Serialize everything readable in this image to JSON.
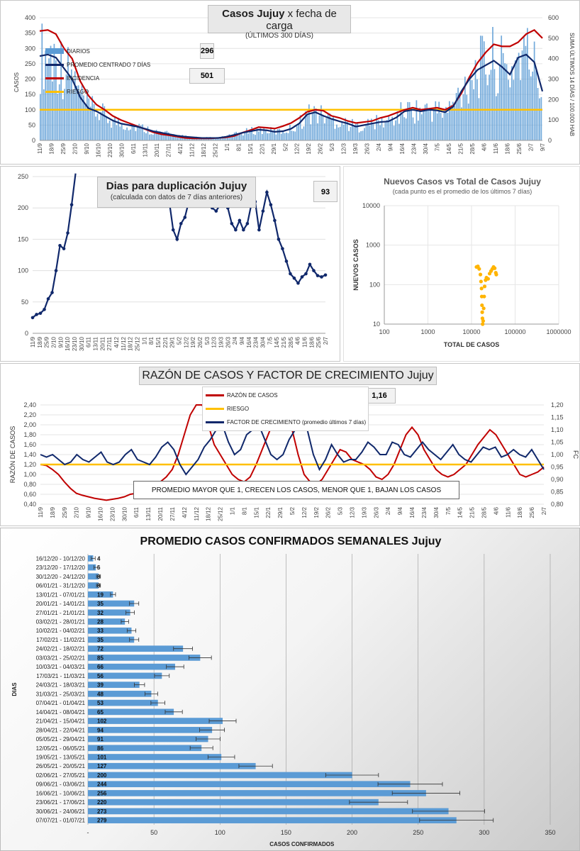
{
  "colors": {
    "navy": "#10286b",
    "red": "#c00000",
    "gold": "#ffc000",
    "bars": "#5b9bd5",
    "orange_pts": "#ffb400"
  },
  "panel1": {
    "title_bold": "Casos Jujuy",
    "title_rest": " x fecha de carga",
    "subtitle": "(ÚLTIMOS 300 DÍAS)",
    "ylabel_left": "CASOS",
    "ylabel_right": "SUMA  ÚLTIMOS 14 DÍAS / 100.000 HAB",
    "value_box_1": "296",
    "value_box_2": "501",
    "legend": [
      "DIARIOS",
      "PROMEDIO CENTRADO 7 DÍAS",
      "INCIDENCIA",
      "RIESGO"
    ]
  },
  "panel2": {
    "title": "Dias para duplicación Jujuy",
    "subtitle": "(calculada con datos de 7 días anteriores)",
    "value_box": "93"
  },
  "panel3": {
    "title": "Nuevos Casos vs Total de Casos Jujuy",
    "subtitle": "(cada punto es el promedio de los últimos 7 días)",
    "ylabel": "NUEVOS  CASOS",
    "xlabel": "TOTAL DE CASOS"
  },
  "panel4": {
    "title": "RAZÓN DE CASOS Y FACTOR DE CRECIMIENTO Jujuy",
    "ylabel_left": "RAZÓN DE CASOS",
    "ylabel_right": "FC",
    "value_box": "1,16",
    "note": "PROMEDIO MAYOR QUE 1, CRECEN LOS CASOS, MENOR QUE 1, BAJAN LOS CASOS",
    "legend": [
      "RAZÓN DE CASOS",
      "RIESGO",
      "FACTOR DE CRECIMIENTO (promedio últimos 7 días)"
    ]
  },
  "panel5": {
    "title": "PROMEDIO CASOS CONFIRMADOS SEMANALES Jujuy",
    "ylabel": "DIAS",
    "xlabel": "CASOS CONFIRMADOS"
  },
  "chart_data": [
    {
      "type": "bar",
      "title": "Casos Jujuy x fecha de carga",
      "x_ticks": [
        "11/9",
        "18/9",
        "25/9",
        "2/10",
        "9/10",
        "16/10",
        "23/10",
        "30/10",
        "6/11",
        "13/11",
        "20/11",
        "27/11",
        "4/12",
        "11/12",
        "18/12",
        "25/12",
        "1/1",
        "8/1",
        "15/1",
        "22/1",
        "29/1",
        "5/2",
        "12/2",
        "19/2",
        "26/2",
        "5/3",
        "12/3",
        "19/3",
        "26/3",
        "2/4",
        "9/4",
        "16/4",
        "23/4",
        "30/4",
        "7/5",
        "14/5",
        "21/5",
        "28/5",
        "4/6",
        "11/6",
        "18/6",
        "25/6",
        "2/7",
        "9/7"
      ],
      "y_ticks_left": [
        0,
        50,
        100,
        150,
        200,
        250,
        300,
        350,
        400
      ],
      "y_ticks_right": [
        0,
        100,
        200,
        300,
        400,
        500,
        600
      ],
      "ylim_left": [
        0,
        400
      ],
      "ylim_right": [
        0,
        600
      ],
      "series": [
        {
          "name": "PROMEDIO CENTRADO 7 DÍAS",
          "values": [
            275,
            280,
            270,
            235,
            200,
            140,
            105,
            95,
            80,
            65,
            55,
            50,
            45,
            38,
            30,
            25,
            20,
            15,
            12,
            10,
            8,
            8,
            8,
            12,
            18,
            25,
            30,
            35,
            33,
            28,
            30,
            38,
            55,
            85,
            92,
            80,
            70,
            62,
            55,
            45,
            50,
            55,
            60,
            62,
            75,
            95,
            100,
            95,
            100,
            98,
            92,
            110,
            160,
            200,
            230,
            245,
            260,
            240,
            215,
            270,
            280,
            255,
            160
          ]
        },
        {
          "name": "INCIDENCIA",
          "values": [
            535,
            540,
            520,
            450,
            400,
            290,
            220,
            175,
            150,
            120,
            100,
            85,
            70,
            55,
            40,
            30,
            25,
            18,
            12,
            10,
            10,
            10,
            12,
            15,
            22,
            38,
            50,
            65,
            62,
            58,
            70,
            85,
            110,
            140,
            150,
            145,
            120,
            110,
            95,
            85,
            90,
            95,
            110,
            120,
            135,
            150,
            160,
            150,
            155,
            160,
            150,
            170,
            230,
            310,
            380,
            430,
            470,
            460,
            460,
            480,
            520,
            540,
            500
          ]
        },
        {
          "name": "RIESGO",
          "values": [
            100
          ]
        }
      ]
    },
    {
      "type": "line",
      "title": "Dias para duplicación Jujuy",
      "x_ticks": [
        "11/9",
        "18/9",
        "25/9",
        "2/10",
        "9/10",
        "16/10",
        "23/10",
        "30/10",
        "6/11",
        "13/11",
        "20/11",
        "27/11",
        "4/12",
        "11/12",
        "18/12",
        "25/12",
        "1/1",
        "8/1",
        "15/1",
        "22/1",
        "29/1",
        "5/2",
        "12/2",
        "19/2",
        "26/2",
        "5/3",
        "12/3",
        "19/3",
        "26/3",
        "2/4",
        "9/4",
        "16/4",
        "23/4",
        "30/4",
        "7/5",
        "14/5",
        "21/5",
        "28/5",
        "4/6",
        "11/6",
        "18/6",
        "25/6",
        "2/7"
      ],
      "y_ticks": [
        0,
        50,
        100,
        150,
        200,
        250
      ],
      "ylim": [
        0,
        250
      ],
      "segments": [
        [
          [
            0,
            25
          ],
          [
            1,
            30
          ],
          [
            2,
            32
          ],
          [
            3,
            38
          ],
          [
            4,
            55
          ],
          [
            5,
            65
          ],
          [
            6,
            100
          ],
          [
            7,
            140
          ],
          [
            8,
            135
          ],
          [
            9,
            160
          ],
          [
            10,
            205
          ],
          [
            11,
            255
          ]
        ],
        [
          [
            35,
            210
          ],
          [
            36,
            165
          ],
          [
            37,
            150
          ],
          [
            38,
            175
          ],
          [
            39,
            185
          ],
          [
            40,
            210
          ],
          [
            41,
            220
          ]
        ],
        [
          [
            46,
            200
          ],
          [
            47,
            195
          ],
          [
            48,
            205
          ],
          [
            49,
            225
          ],
          [
            50,
            200
          ],
          [
            51,
            175
          ],
          [
            52,
            165
          ],
          [
            53,
            180
          ],
          [
            54,
            165
          ],
          [
            55,
            175
          ],
          [
            56,
            205
          ],
          [
            57,
            210
          ],
          [
            58,
            165
          ],
          [
            59,
            195
          ],
          [
            60,
            225
          ],
          [
            61,
            205
          ],
          [
            62,
            180
          ],
          [
            63,
            150
          ],
          [
            64,
            135
          ],
          [
            65,
            115
          ],
          [
            66,
            95
          ],
          [
            67,
            88
          ],
          [
            68,
            80
          ],
          [
            69,
            90
          ],
          [
            70,
            95
          ],
          [
            71,
            110
          ],
          [
            72,
            100
          ],
          [
            73,
            92
          ],
          [
            74,
            90
          ],
          [
            75,
            93
          ]
        ]
      ]
    },
    {
      "type": "scatter",
      "title": "Nuevos Casos vs Total de Casos Jujuy",
      "x_ticks": [
        "100",
        "1000",
        "10000",
        "100000",
        "1000000"
      ],
      "y_ticks": [
        "10",
        "100",
        "1000",
        "10000"
      ],
      "log_scale": true,
      "xlim": [
        100,
        1000000
      ],
      "ylim": [
        10,
        10000
      ],
      "points": [
        [
          13000,
          280
        ],
        [
          14000,
          290
        ],
        [
          15000,
          250
        ],
        [
          16000,
          180
        ],
        [
          16500,
          120
        ],
        [
          17000,
          80
        ],
        [
          17200,
          50
        ],
        [
          17400,
          30
        ],
        [
          17600,
          20
        ],
        [
          17800,
          14
        ],
        [
          18000,
          10
        ],
        [
          18500,
          12
        ],
        [
          19000,
          25
        ],
        [
          19500,
          50
        ],
        [
          20000,
          90
        ],
        [
          21000,
          130
        ],
        [
          22000,
          150
        ],
        [
          24000,
          140
        ],
        [
          26000,
          190
        ],
        [
          28000,
          220
        ],
        [
          30000,
          250
        ],
        [
          32000,
          280
        ],
        [
          34000,
          260
        ],
        [
          36000,
          200
        ],
        [
          37000,
          180
        ]
      ]
    },
    {
      "type": "line",
      "title": "RAZÓN DE CASOS Y FACTOR DE CRECIMIENTO Jujuy",
      "x_ticks": [
        "11/9",
        "18/9",
        "25/9",
        "2/10",
        "9/10",
        "16/10",
        "23/10",
        "30/10",
        "6/11",
        "13/11",
        "20/11",
        "27/11",
        "4/12",
        "11/12",
        "18/12",
        "25/12",
        "1/1",
        "8/1",
        "15/1",
        "22/1",
        "29/1",
        "5/2",
        "12/2",
        "19/2",
        "26/2",
        "5/3",
        "12/3",
        "19/3",
        "26/3",
        "2/4",
        "9/4",
        "16/4",
        "23/4",
        "30/4",
        "7/5",
        "14/5",
        "21/5",
        "28/5",
        "4/6",
        "11/6",
        "18/6",
        "25/6",
        "2/7"
      ],
      "y_ticks_left": [
        "0,40",
        "0,60",
        "0,80",
        "1,00",
        "1,20",
        "1,40",
        "1,60",
        "1,80",
        "2,00",
        "2,20",
        "2,40"
      ],
      "y_ticks_right": [
        "0,80",
        "0,85",
        "0,90",
        "0,95",
        "1,00",
        "1,05",
        "1,10",
        "1,15",
        "1,20"
      ],
      "ylim_left": [
        0.4,
        2.4
      ],
      "ylim_right": [
        0.8,
        1.2
      ],
      "series": [
        {
          "name": "RAZÓN DE CASOS",
          "values": [
            1.2,
            1.18,
            1.1,
            1.0,
            0.85,
            0.72,
            0.62,
            0.58,
            0.55,
            0.52,
            0.5,
            0.48,
            0.5,
            0.52,
            0.55,
            0.6,
            0.62,
            0.65,
            0.7,
            0.75,
            0.85,
            0.95,
            1.1,
            1.4,
            1.8,
            2.2,
            2.4,
            2.4,
            2.0,
            1.6,
            1.4,
            1.2,
            1.0,
            0.9,
            0.85,
            0.95,
            1.2,
            1.5,
            1.8,
            2.1,
            2.4,
            2.4,
            1.9,
            1.4,
            1.0,
            0.85,
            0.8,
            0.9,
            1.1,
            1.3,
            1.5,
            1.45,
            1.3,
            1.25,
            1.2,
            1.1,
            0.95,
            0.9,
            1.0,
            1.2,
            1.5,
            1.8,
            1.95,
            1.8,
            1.5,
            1.3,
            1.1,
            1.0,
            0.95,
            1.0,
            1.1,
            1.2,
            1.4,
            1.6,
            1.75,
            1.9,
            1.8,
            1.6,
            1.4,
            1.2,
            1.0,
            0.95,
            1.0,
            1.05,
            1.15
          ]
        },
        {
          "name": "RIESGO",
          "values": [
            1.2
          ]
        },
        {
          "name": "FACTOR DE CRECIMIENTO (promedio últimos 7 días)",
          "values": [
            1.0,
            0.99,
            1.0,
            0.98,
            0.96,
            0.97,
            1.0,
            0.98,
            0.97,
            0.99,
            1.01,
            0.97,
            0.96,
            0.97,
            1.0,
            1.02,
            0.98,
            0.97,
            0.96,
            0.99,
            1.03,
            1.05,
            1.02,
            0.96,
            0.92,
            0.95,
            0.98,
            1.03,
            1.06,
            1.1,
            1.12,
            1.05,
            1.0,
            1.02,
            1.08,
            1.1,
            1.12,
            1.06,
            1.0,
            0.98,
            1.0,
            1.06,
            1.1,
            1.13,
            1.1,
            1.0,
            0.94,
            0.98,
            1.04,
            1.0,
            0.97,
            0.98,
            0.98,
            1.01,
            1.05,
            1.03,
            1.0,
            1.0,
            1.05,
            1.04,
            1.0,
            0.99,
            1.02,
            1.05,
            1.02,
            1.0,
            0.98,
            1.01,
            1.04,
            1.0,
            0.98,
            0.97,
            1.0,
            1.03,
            1.02,
            1.03,
            0.99,
            1.0,
            1.02,
            1.0,
            0.99,
            1.02,
            0.98,
            0.94
          ]
        }
      ]
    },
    {
      "type": "bar",
      "orientation": "horizontal",
      "title": "PROMEDIO CASOS CONFIRMADOS SEMANALES Jujuy",
      "xlabel": "CASOS CONFIRMADOS",
      "ylabel": "DIAS",
      "x_ticks": [
        "-",
        "50",
        "100",
        "150",
        "200",
        "250",
        "300",
        "350"
      ],
      "xlim": [
        0,
        350
      ],
      "categories": [
        "16/12/20 - 10/12/20",
        "23/12/20 - 17/12/20",
        "30/12/20 - 24/12/20",
        "06/01/21 - 31/12/20",
        "13/01/21 - 07/01/21",
        "20/01/21 - 14/01/21",
        "27/01/21 - 21/01/21",
        "03/02/21 - 28/01/21",
        "10/02/21 - 04/02/21",
        "17/02/21 - 11/02/21",
        "24/02/21 - 18/02/21",
        "03/03/21 - 25/02/21",
        "10/03/21 - 04/03/21",
        "17/03/21 - 11/03/21",
        "24/03/21 - 18/03/21",
        "31/03/21 - 25/03/21",
        "07/04/21 - 01/04/21",
        "14/04/21 - 08/04/21",
        "21/04/21 - 15/04/21",
        "28/04/21 - 22/04/21",
        "05/05/21 - 29/04/21",
        "12/05/21 - 06/05/21",
        "19/05/21 - 13/05/21",
        "26/05/21 - 20/05/21",
        "02/06/21 - 27/05/21",
        "09/06/21 - 03/06/21",
        "16/06/21 - 10/06/21",
        "23/06/21 - 17/06/21",
        "30/06/21 - 24/06/21",
        "07/07/21 - 01/07/21"
      ],
      "values": [
        4,
        6,
        8,
        8,
        19,
        35,
        32,
        28,
        33,
        35,
        72,
        85,
        66,
        56,
        39,
        48,
        53,
        65,
        102,
        94,
        91,
        86,
        101,
        127,
        200,
        244,
        256,
        220,
        273,
        279
      ]
    }
  ]
}
